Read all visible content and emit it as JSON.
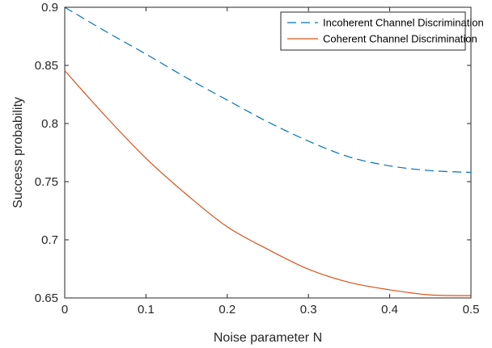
{
  "chart_data": {
    "type": "line",
    "title": "",
    "xlabel": "Noise parameter N",
    "ylabel": "Success probability",
    "xlim": [
      0,
      0.5
    ],
    "ylim": [
      0.65,
      0.9
    ],
    "xticks": [
      0,
      0.1,
      0.2,
      0.3,
      0.4,
      0.5
    ],
    "xtick_labels": [
      "0",
      "0.1",
      "0.2",
      "0.3",
      "0.4",
      "0.5"
    ],
    "yticks": [
      0.65,
      0.7,
      0.75,
      0.8,
      0.85,
      0.9
    ],
    "ytick_labels": [
      "0.65",
      "0.7",
      "0.75",
      "0.8",
      "0.85",
      "0.9"
    ],
    "grid": false,
    "legend_position": "top-right",
    "series": [
      {
        "name": "Incoherent Channel Discrimination",
        "color": "#0072BD",
        "style": "dashed",
        "x": [
          0,
          0.05,
          0.1,
          0.15,
          0.2,
          0.25,
          0.3,
          0.35,
          0.4,
          0.45,
          0.5
        ],
        "y": [
          0.9,
          0.8794,
          0.8597,
          0.8393,
          0.8202,
          0.8014,
          0.7849,
          0.7713,
          0.7636,
          0.7595,
          0.758
        ]
      },
      {
        "name": "Coherent Channel Discrimination",
        "color": "#D95319",
        "style": "solid",
        "x": [
          0,
          0.05,
          0.1,
          0.15,
          0.2,
          0.25,
          0.3,
          0.35,
          0.4,
          0.45,
          0.5
        ],
        "y": [
          0.8455,
          0.8065,
          0.7701,
          0.7389,
          0.7112,
          0.6918,
          0.6747,
          0.6634,
          0.657,
          0.6526,
          0.652
        ]
      }
    ]
  }
}
